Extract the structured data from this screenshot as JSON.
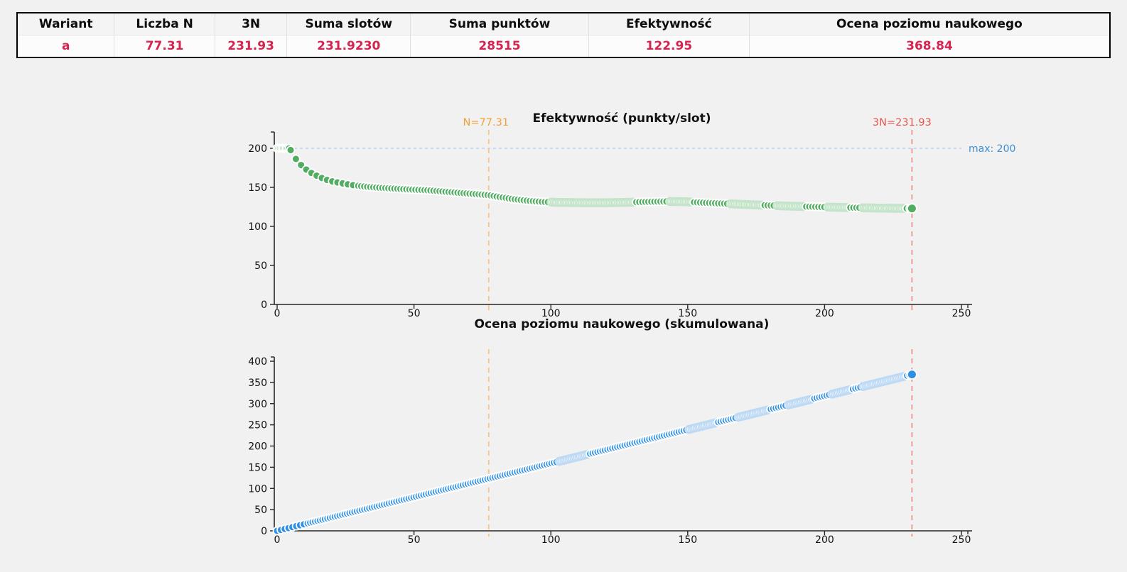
{
  "table": {
    "columns": [
      "Wariant",
      "Liczba N",
      "3N",
      "Suma slotów",
      "Suma punktów",
      "Efektywność",
      "Ocena poziomu naukowego"
    ],
    "row": [
      "a",
      "77.31",
      "231.93",
      "231.9230",
      "28515",
      "122.95",
      "368.84"
    ],
    "value_color": "#d62450",
    "header_color": "#0d0d0d"
  },
  "chart_data": [
    {
      "type": "scatter",
      "title": "Efektywność (punkty/slot)",
      "marker_color": "#52ad62",
      "faded_stroke": "#c4e4ca",
      "xlim": [
        0,
        258
      ],
      "ylim": [
        0,
        218
      ],
      "xticks": [
        0,
        50,
        100,
        150,
        200,
        250
      ],
      "yticks": [
        0,
        50,
        100,
        150,
        200
      ],
      "anchors": [
        [
          0,
          200
        ],
        [
          3.5,
          200
        ],
        [
          4.7,
          200
        ],
        [
          5.5,
          193
        ],
        [
          6.5,
          188
        ],
        [
          7.5,
          183.5
        ],
        [
          8.5,
          179.5
        ],
        [
          9.5,
          176
        ],
        [
          10.5,
          173.2
        ],
        [
          12,
          169.5
        ],
        [
          13.5,
          166.5
        ],
        [
          15,
          164
        ],
        [
          17,
          161
        ],
        [
          19,
          158.6
        ],
        [
          21,
          157
        ],
        [
          24,
          155
        ],
        [
          27,
          153.2
        ],
        [
          30,
          151.8
        ],
        [
          34,
          150.4
        ],
        [
          38,
          149.4
        ],
        [
          42,
          148.5
        ],
        [
          46,
          147.8
        ],
        [
          50,
          147.1
        ],
        [
          55,
          146.3
        ],
        [
          60,
          144.9
        ],
        [
          65,
          143.4
        ],
        [
          70,
          142
        ],
        [
          75,
          140.7
        ],
        [
          77.31,
          140
        ],
        [
          82,
          137.2
        ],
        [
          87,
          134.6
        ],
        [
          92,
          132.7
        ],
        [
          97,
          131.4
        ],
        [
          103,
          130.7
        ],
        [
          112,
          130.4
        ],
        [
          120,
          130.3
        ],
        [
          128,
          130.8
        ],
        [
          136,
          131.6
        ],
        [
          143,
          132
        ],
        [
          149,
          131.6
        ],
        [
          155,
          130.5
        ],
        [
          162,
          129.4
        ],
        [
          170,
          128.2
        ],
        [
          178,
          127.1
        ],
        [
          186,
          126.1
        ],
        [
          194,
          125.3
        ],
        [
          202,
          124.6
        ],
        [
          210,
          124
        ],
        [
          218,
          123.6
        ],
        [
          225,
          123.2
        ],
        [
          231.93,
          122.95
        ]
      ],
      "steps": [
        {
          "from": 0,
          "to": 4.8,
          "step": 0.55
        },
        {
          "from": 4.8,
          "to": 28,
          "step": 1.9
        },
        {
          "from": 28,
          "to": 231.93,
          "step": 1.1
        }
      ],
      "faded_ranges": [
        [
          99,
          131
        ],
        [
          143,
          152
        ],
        [
          165,
          178
        ],
        [
          182,
          193
        ],
        [
          200,
          209
        ],
        [
          213,
          230
        ]
      ],
      "final_point": [
        231.93,
        122.95
      ],
      "annotations": {
        "vlines": [
          {
            "x": 77.31,
            "label": "N=77.31",
            "label_color": "#f0a237",
            "line_color": "#f8c583"
          },
          {
            "x": 231.93,
            "label": "3N=231.93",
            "label_color": "#e2574f",
            "line_color": "#f0938a"
          }
        ],
        "hline": {
          "y": 200,
          "label": "max: 200",
          "label_color": "#3f8fd2",
          "line_color": "#b9d0ea"
        }
      }
    },
    {
      "type": "scatter",
      "title": "Ocena poziomu naukowego (skumulowana)",
      "marker_color": "#2f8fe3",
      "faded_stroke": "#bdd9f4",
      "xlim": [
        0,
        258
      ],
      "ylim": [
        0,
        415
      ],
      "xticks": [
        0,
        50,
        100,
        150,
        200,
        250
      ],
      "yticks": [
        0,
        50,
        100,
        150,
        200,
        250,
        300,
        350,
        400
      ],
      "anchors": [
        [
          0,
          0
        ],
        [
          231.93,
          368.84
        ]
      ],
      "steps": [
        {
          "from": 0,
          "to": 10,
          "step": 1.4
        },
        {
          "from": 10,
          "to": 231.93,
          "step": 0.9
        }
      ],
      "faded_ranges": [
        [
          103,
          114
        ],
        [
          150,
          161
        ],
        [
          168,
          180
        ],
        [
          186,
          196
        ],
        [
          202,
          210
        ],
        [
          214,
          230
        ]
      ],
      "final_point": [
        231.93,
        368.84
      ],
      "annotations": {
        "vlines": [
          {
            "x": 77.31,
            "label": "",
            "label_color": "#f0a237",
            "line_color": "#f8c583"
          },
          {
            "x": 231.93,
            "label": "",
            "label_color": "#e2574f",
            "line_color": "#f0938a"
          }
        ],
        "hline": null
      }
    }
  ]
}
